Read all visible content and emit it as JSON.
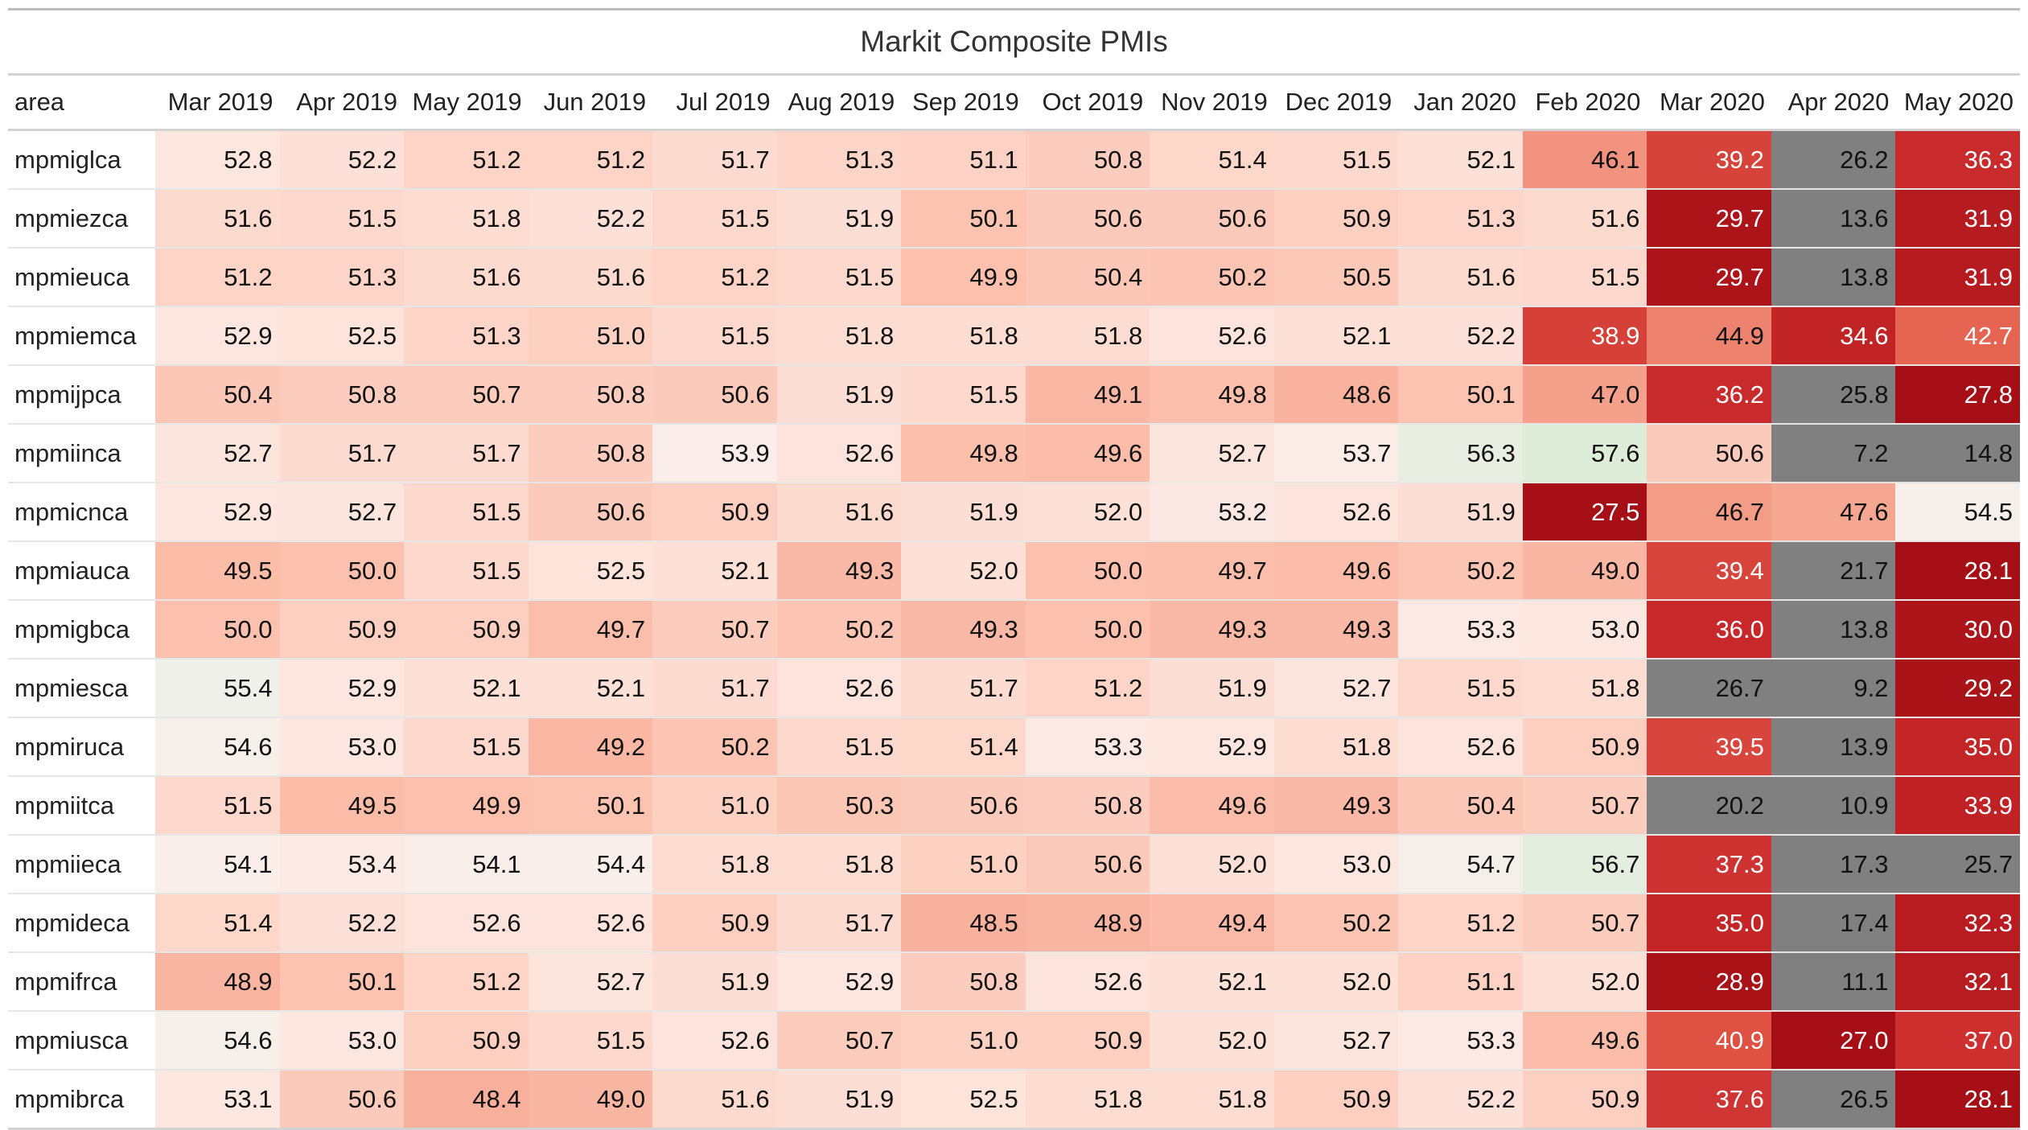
{
  "chart_data": {
    "type": "table",
    "title": "Markit Composite PMIs",
    "row_header": "area",
    "columns": [
      "Mar 2019",
      "Apr 2019",
      "May 2019",
      "Jun 2019",
      "Jul 2019",
      "Aug 2019",
      "Sep 2019",
      "Oct 2019",
      "Nov 2019",
      "Dec 2019",
      "Jan 2020",
      "Feb 2020",
      "Mar 2020",
      "Apr 2020",
      "May 2020"
    ],
    "rows": [
      {
        "area": "mpmiglca",
        "values": [
          "52.8",
          "52.2",
          "51.2",
          "51.2",
          "51.7",
          "51.3",
          "51.1",
          "50.8",
          "51.4",
          "51.5",
          "52.1",
          "46.1",
          "39.2",
          "26.2",
          "36.3"
        ]
      },
      {
        "area": "mpmiezca",
        "values": [
          "51.6",
          "51.5",
          "51.8",
          "52.2",
          "51.5",
          "51.9",
          "50.1",
          "50.6",
          "50.6",
          "50.9",
          "51.3",
          "51.6",
          "29.7",
          "13.6",
          "31.9"
        ]
      },
      {
        "area": "mpmieuca",
        "values": [
          "51.2",
          "51.3",
          "51.6",
          "51.6",
          "51.2",
          "51.5",
          "49.9",
          "50.4",
          "50.2",
          "50.5",
          "51.6",
          "51.5",
          "29.7",
          "13.8",
          "31.9"
        ]
      },
      {
        "area": "mpmiemca",
        "values": [
          "52.9",
          "52.5",
          "51.3",
          "51.0",
          "51.5",
          "51.8",
          "51.8",
          "51.8",
          "52.6",
          "52.1",
          "52.2",
          "38.9",
          "44.9",
          "34.6",
          "42.7"
        ]
      },
      {
        "area": "mpmijpca",
        "values": [
          "50.4",
          "50.8",
          "50.7",
          "50.8",
          "50.6",
          "51.9",
          "51.5",
          "49.1",
          "49.8",
          "48.6",
          "50.1",
          "47.0",
          "36.2",
          "25.8",
          "27.8"
        ]
      },
      {
        "area": "mpmiinca",
        "values": [
          "52.7",
          "51.7",
          "51.7",
          "50.8",
          "53.9",
          "52.6",
          "49.8",
          "49.6",
          "52.7",
          "53.7",
          "56.3",
          "57.6",
          "50.6",
          "7.2",
          "14.8"
        ]
      },
      {
        "area": "mpmicnca",
        "values": [
          "52.9",
          "52.7",
          "51.5",
          "50.6",
          "50.9",
          "51.6",
          "51.9",
          "52.0",
          "53.2",
          "52.6",
          "51.9",
          "27.5",
          "46.7",
          "47.6",
          "54.5"
        ]
      },
      {
        "area": "mpmiauca",
        "values": [
          "49.5",
          "50.0",
          "51.5",
          "52.5",
          "52.1",
          "49.3",
          "52.0",
          "50.0",
          "49.7",
          "49.6",
          "50.2",
          "49.0",
          "39.4",
          "21.7",
          "28.1"
        ]
      },
      {
        "area": "mpmigbca",
        "values": [
          "50.0",
          "50.9",
          "50.9",
          "49.7",
          "50.7",
          "50.2",
          "49.3",
          "50.0",
          "49.3",
          "49.3",
          "53.3",
          "53.0",
          "36.0",
          "13.8",
          "30.0"
        ]
      },
      {
        "area": "mpmiesca",
        "values": [
          "55.4",
          "52.9",
          "52.1",
          "52.1",
          "51.7",
          "52.6",
          "51.7",
          "51.2",
          "51.9",
          "52.7",
          "51.5",
          "51.8",
          "26.7",
          "9.2",
          "29.2"
        ]
      },
      {
        "area": "mpmiruca",
        "values": [
          "54.6",
          "53.0",
          "51.5",
          "49.2",
          "50.2",
          "51.5",
          "51.4",
          "53.3",
          "52.9",
          "51.8",
          "52.6",
          "50.9",
          "39.5",
          "13.9",
          "35.0"
        ]
      },
      {
        "area": "mpmiitca",
        "values": [
          "51.5",
          "49.5",
          "49.9",
          "50.1",
          "51.0",
          "50.3",
          "50.6",
          "50.8",
          "49.6",
          "49.3",
          "50.4",
          "50.7",
          "20.2",
          "10.9",
          "33.9"
        ]
      },
      {
        "area": "mpmiieca",
        "values": [
          "54.1",
          "53.4",
          "54.1",
          "54.4",
          "51.8",
          "51.8",
          "51.0",
          "50.6",
          "52.0",
          "53.0",
          "54.7",
          "56.7",
          "37.3",
          "17.3",
          "25.7"
        ]
      },
      {
        "area": "mpmideca",
        "values": [
          "51.4",
          "52.2",
          "52.6",
          "52.6",
          "50.9",
          "51.7",
          "48.5",
          "48.9",
          "49.4",
          "50.2",
          "51.2",
          "50.7",
          "35.0",
          "17.4",
          "32.3"
        ]
      },
      {
        "area": "mpmifrca",
        "values": [
          "48.9",
          "50.1",
          "51.2",
          "52.7",
          "51.9",
          "52.9",
          "50.8",
          "52.6",
          "52.1",
          "52.0",
          "51.1",
          "52.0",
          "28.9",
          "11.1",
          "32.1"
        ]
      },
      {
        "area": "mpmiusca",
        "values": [
          "54.6",
          "53.0",
          "50.9",
          "51.5",
          "52.6",
          "50.7",
          "51.0",
          "50.9",
          "52.0",
          "52.7",
          "53.3",
          "49.6",
          "40.9",
          "27.0",
          "37.0"
        ]
      },
      {
        "area": "mpmibrca",
        "values": [
          "53.1",
          "50.6",
          "48.4",
          "49.0",
          "51.6",
          "51.9",
          "52.5",
          "51.8",
          "51.8",
          "50.9",
          "52.2",
          "50.9",
          "37.6",
          "26.5",
          "28.1"
        ]
      }
    ],
    "colors": {
      "low_out_of_range": "#808080",
      "scale_dark_red": "#a50f15",
      "scale_red": "#de2d26",
      "scale_light": "#fee0d2",
      "scale_white": "#f7f7f7",
      "scale_green": "#dcedd6"
    }
  }
}
